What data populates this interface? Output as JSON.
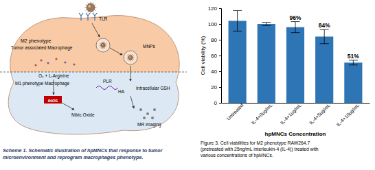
{
  "chart_data": {
    "type": "bar",
    "categories": [
      "Untreated",
      "IL-4+0μg/mL",
      "IL-4+1μg/mL",
      "IL-4+5μg/mL",
      "IL-4+10μg/mL"
    ],
    "values": [
      104,
      100,
      96,
      84,
      51
    ],
    "errors": [
      13,
      2,
      7,
      9,
      3
    ],
    "value_labels": [
      null,
      null,
      "96%",
      "84%",
      "51%"
    ],
    "data_labels": true,
    "color": "#2e75b6",
    "x_label": "hpMNCs Concentration",
    "y_label": "Cell viability (%)",
    "ylim": [
      0,
      120
    ],
    "yticks": [
      0,
      20,
      40,
      60,
      80,
      100,
      120
    ],
    "grid": false
  },
  "figure": {
    "scheme": {
      "m2_title": "M2 phenotype",
      "m2_subtitle": "Tumor associated Macrophage",
      "tlr": "TLR",
      "mnps": "MNPs",
      "plr": "PLR",
      "ha": "HA",
      "m1_title": "M1 phenotype Macrophage",
      "substrate": "O₂ + L-Arginine",
      "inos": "iNOS",
      "nitric_oxide": "Nitric Oxide",
      "gsh": "Intracellular GSH",
      "mr_imaging": "MR imaging"
    },
    "scheme_caption": [
      "Scheme 1. Schematic illustration of hpMNCs that response to tumor",
      "microenvironment and reprogram macrophages phenotype."
    ],
    "figure_caption": [
      "Figure 3. Cell viabilities for M2 phenotype RAW264.7",
      "(pretreated with 25ng/mL interleukin-4 (IL-4)) treated with",
      "various concentrations of hpMNCs."
    ]
  }
}
